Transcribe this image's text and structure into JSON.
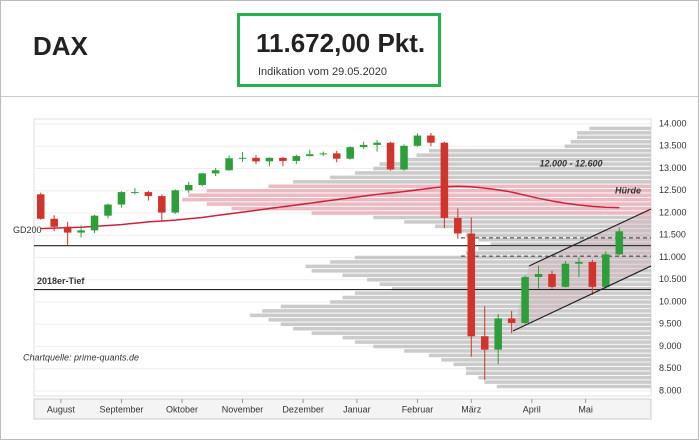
{
  "header": {
    "title": "DAX",
    "price": "11.672,00 Pkt.",
    "note": "Indikation vom 29.05.2020"
  },
  "chart_data": {
    "type": "candlestick",
    "categories": [
      null,
      null,
      null,
      null,
      null,
      null,
      null,
      null,
      null,
      null,
      null,
      null,
      null,
      null,
      null,
      null,
      null,
      null,
      null,
      null,
      null,
      null,
      null,
      null,
      null,
      null,
      null,
      null,
      null,
      null,
      null,
      null,
      null,
      null,
      null,
      null,
      null,
      null,
      null,
      null,
      null,
      null,
      null,
      null
    ],
    "open": [
      12420,
      11870,
      11690,
      11560,
      11610,
      11940,
      12190,
      12470,
      12470,
      12380,
      12010,
      12510,
      12630,
      12890,
      12960,
      13230,
      13240,
      13160,
      13240,
      13170,
      13280,
      13320,
      13340,
      13220,
      13480,
      13530,
      13580,
      12980,
      13510,
      13740,
      13580,
      11890,
      11540,
      9230,
      8930,
      9630,
      9530,
      10560,
      10630,
      10340,
      10860,
      10900,
      10340,
      11070
    ],
    "high": [
      12460,
      11950,
      11800,
      11720,
      11960,
      12210,
      12490,
      12560,
      12500,
      12420,
      12530,
      12700,
      12900,
      13010,
      13290,
      13370,
      13300,
      13250,
      13260,
      13310,
      13420,
      13380,
      13400,
      13500,
      13600,
      13640,
      13600,
      13540,
      13790,
      13800,
      13600,
      12100,
      11900,
      9900,
      9730,
      9800,
      10600,
      10820,
      10700,
      10920,
      11000,
      10950,
      11140,
      11670
    ],
    "low": [
      11850,
      11590,
      11270,
      11450,
      11550,
      11880,
      12120,
      12420,
      12280,
      11810,
      11980,
      12450,
      12600,
      12830,
      12950,
      13150,
      13100,
      13050,
      13050,
      13100,
      13270,
      13280,
      13140,
      13200,
      13440,
      13380,
      12950,
      12950,
      13490,
      13500,
      11660,
      11420,
      8770,
      8250,
      8600,
      9300,
      9500,
      10300,
      10300,
      10330,
      10560,
      10160,
      10300,
      11050
    ],
    "close": [
      11870,
      11690,
      11560,
      11610,
      11940,
      12190,
      12470,
      12470,
      12380,
      12010,
      12510,
      12630,
      12890,
      12960,
      13230,
      13240,
      13160,
      13240,
      13170,
      13280,
      13320,
      13340,
      13220,
      13480,
      13530,
      13580,
      12980,
      13510,
      13740,
      13580,
      11890,
      11540,
      9230,
      8930,
      9630,
      9530,
      10560,
      10630,
      10340,
      10860,
      10900,
      10340,
      11070,
      11590
    ],
    "up_color": "#2e9e3a",
    "down_color": "#d0342c",
    "ma": {
      "name": "GD200",
      "color": "#d0203a",
      "values": [
        11650,
        11660,
        11670,
        11680,
        11700,
        11720,
        11740,
        11770,
        11800,
        11820,
        11840,
        11870,
        11900,
        11940,
        11980,
        12020,
        12060,
        12100,
        12140,
        12180,
        12220,
        12260,
        12300,
        12340,
        12380,
        12420,
        12450,
        12480,
        12520,
        12560,
        12590,
        12600,
        12590,
        12560,
        12520,
        12470,
        12400,
        12330,
        12270,
        12220,
        12180,
        12150,
        12130,
        12120
      ]
    },
    "levels": [
      {
        "value": 11266
      },
      {
        "value": 10279,
        "label": "2018er-Tief"
      }
    ],
    "dashed_levels": [
      11440,
      11030
    ],
    "profile": {
      "levels": [
        8100,
        8200,
        8300,
        8400,
        8500,
        8600,
        8700,
        8800,
        8900,
        9000,
        9100,
        9200,
        9300,
        9400,
        9500,
        9600,
        9700,
        9800,
        9900,
        10000,
        10100,
        10200,
        10300,
        10400,
        10500,
        10600,
        10700,
        10800,
        10900,
        11000,
        11100,
        11200,
        11300,
        11400,
        11500,
        11600,
        11700,
        11800,
        11900,
        12000,
        12100,
        12200,
        12300,
        12400,
        12500,
        12600,
        12700,
        12800,
        12900,
        13000,
        13100,
        13200,
        13300,
        13400,
        13500,
        13600,
        13700,
        13800,
        13900
      ],
      "values": [
        25,
        27,
        28,
        30,
        30,
        32,
        34,
        36,
        40,
        45,
        48,
        50,
        55,
        58,
        60,
        62,
        65,
        63,
        60,
        52,
        50,
        48,
        42,
        44,
        46,
        50,
        55,
        56,
        52,
        48,
        30,
        28,
        26,
        28,
        30,
        32,
        35,
        40,
        45,
        55,
        68,
        72,
        76,
        75,
        72,
        62,
        58,
        52,
        48,
        45,
        44,
        40,
        38,
        36,
        14,
        13,
        12,
        12,
        10
      ],
      "xlim": [
        0,
        100
      ],
      "color": "#b9b9b9",
      "highlight": [
        12000,
        12600
      ],
      "highlight_color": "#e6a3ae"
    },
    "annotations": [
      "12.000 - 12.600",
      "Hürde",
      "Chartquelle: prime-quants.de"
    ],
    "ylim": [
      8000,
      14000
    ],
    "yticks": [
      {
        "value": 8000,
        "label": "8.000"
      },
      {
        "value": 8500,
        "label": "8.500"
      },
      {
        "value": 9000,
        "label": "9.000"
      },
      {
        "value": 9500,
        "label": "9.500"
      },
      {
        "value": 10000,
        "label": "10.000"
      },
      {
        "value": 10500,
        "label": "10.500"
      },
      {
        "value": 11000,
        "label": "11.000"
      },
      {
        "value": 11500,
        "label": "11.500"
      },
      {
        "value": 12000,
        "label": "12.000"
      },
      {
        "value": 12500,
        "label": "12.500"
      },
      {
        "value": 13000,
        "label": "13.000"
      },
      {
        "value": 13500,
        "label": "13.500"
      },
      {
        "value": 14000,
        "label": "14.000"
      }
    ],
    "xticks": [
      {
        "value": 1.5,
        "label": "August"
      },
      {
        "value": 6,
        "label": "September"
      },
      {
        "value": 10.5,
        "label": "Oktober"
      },
      {
        "value": 15,
        "label": "November"
      },
      {
        "value": 19.5,
        "label": "Dezember"
      },
      {
        "value": 23.5,
        "label": "Januar"
      },
      {
        "value": 28,
        "label": "Februar"
      },
      {
        "value": 32,
        "label": "März"
      },
      {
        "value": 36.5,
        "label": "April"
      },
      {
        "value": 40.5,
        "label": "Mai"
      }
    ]
  }
}
